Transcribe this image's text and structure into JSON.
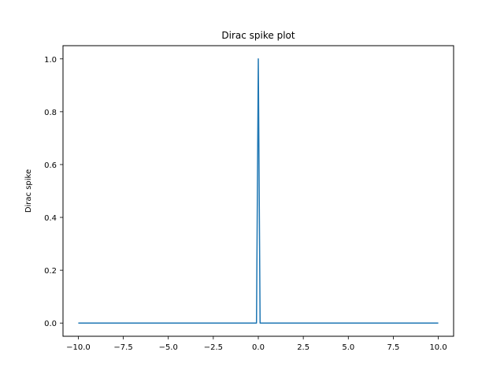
{
  "chart_data": {
    "type": "line",
    "title": "Dirac spike plot",
    "xlabel": "",
    "ylabel": "Dirac spike",
    "xlim": [
      -10.85,
      10.85
    ],
    "ylim": [
      -0.05,
      1.05
    ],
    "grid": false,
    "x_ticks": [
      -10.0,
      -7.5,
      -5.0,
      -2.5,
      0.0,
      2.5,
      5.0,
      7.5,
      10.0
    ],
    "x_tick_labels": [
      "−10.0",
      "−7.5",
      "−5.0",
      "−2.5",
      "0.0",
      "2.5",
      "5.0",
      "7.5",
      "10.0"
    ],
    "y_ticks": [
      0.0,
      0.2,
      0.4,
      0.6,
      0.8,
      1.0
    ],
    "y_tick_labels": [
      "0.0",
      "0.2",
      "0.4",
      "0.6",
      "0.8",
      "1.0"
    ],
    "series": [
      {
        "color": "#1f77b4",
        "x": [
          -10.0,
          -0.1,
          0.0,
          0.1,
          10.0
        ],
        "y": [
          0.0,
          0.0,
          1.0,
          0.0,
          0.0
        ]
      }
    ]
  }
}
